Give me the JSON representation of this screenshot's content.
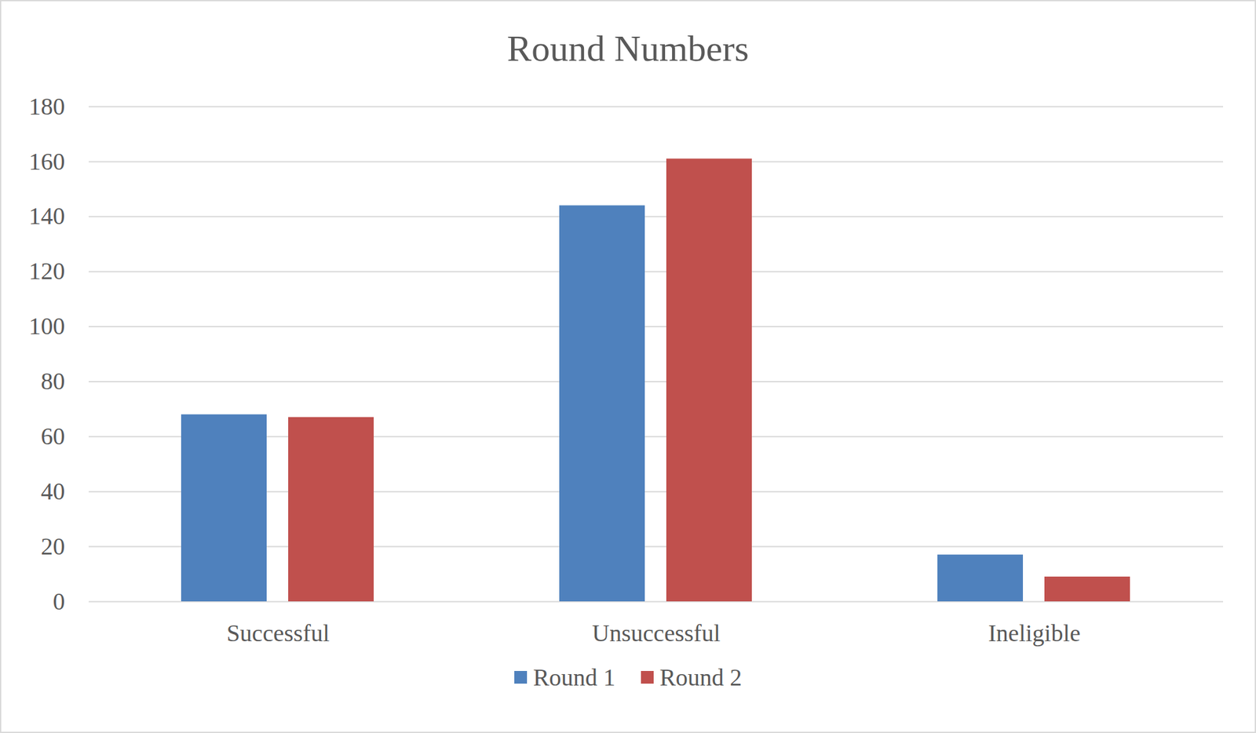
{
  "chart_data": {
    "type": "bar",
    "title": "Round Numbers",
    "categories": [
      "Successful",
      "Unsuccessful",
      "Ineligible"
    ],
    "series": [
      {
        "name": "Round 1",
        "color": "#4f81bd",
        "values": [
          68,
          144,
          17
        ]
      },
      {
        "name": "Round 2",
        "color": "#c0504d",
        "values": [
          67,
          161,
          9
        ]
      }
    ],
    "ylim": [
      0,
      180
    ],
    "yticks": [
      0,
      20,
      40,
      60,
      80,
      100,
      120,
      140,
      160,
      180
    ],
    "grid": true,
    "legend": "bottom"
  }
}
